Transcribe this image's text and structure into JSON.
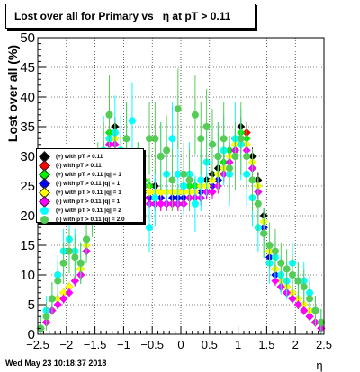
{
  "title": "Lost over all for Primary vs   η at pT > 0.11",
  "footer": "Wed May 23 10:18:37 2018",
  "chart_data": {
    "type": "scatter",
    "xlabel": "η",
    "ylabel": "Lost over all (%)",
    "xlim": [
      -2.5,
      2.5
    ],
    "ylim": [
      0,
      50
    ],
    "x_ticks": [
      "−2.5",
      "−2",
      "−1.5",
      "−1",
      "−0.5",
      "0",
      "0.5",
      "1",
      "1.5",
      "2",
      "2.5"
    ],
    "y_ticks": [
      "0",
      "5",
      "10",
      "15",
      "20",
      "25",
      "30",
      "35",
      "40",
      "45",
      "50"
    ],
    "grid": true,
    "legend_position": "left",
    "x": [
      -2.45,
      -2.35,
      -2.25,
      -2.15,
      -2.05,
      -1.95,
      -1.85,
      -1.75,
      -1.65,
      -1.55,
      -1.45,
      -1.35,
      -1.25,
      -1.15,
      -1.05,
      -0.95,
      -0.85,
      -0.75,
      -0.65,
      -0.55,
      -0.45,
      -0.35,
      -0.25,
      -0.15,
      -0.05,
      0.05,
      0.15,
      0.25,
      0.35,
      0.45,
      0.55,
      0.65,
      0.75,
      0.85,
      0.95,
      1.05,
      1.15,
      1.25,
      1.35,
      1.45,
      1.55,
      1.65,
      1.75,
      1.85,
      1.95,
      2.05,
      2.15,
      2.25,
      2.35,
      2.45
    ],
    "series": [
      {
        "name": "(+) with pT > 0.11",
        "color": "#000000",
        "values": [
          1,
          2,
          4,
          6,
          7,
          8,
          9,
          11,
          15,
          22,
          27,
          31,
          34,
          35,
          30,
          29,
          28,
          27,
          26,
          25,
          25,
          24,
          24,
          24,
          24,
          25,
          25,
          25,
          25,
          26,
          27,
          28,
          29,
          31,
          33,
          35,
          34,
          30,
          26,
          20,
          14,
          11,
          9,
          8,
          7,
          6,
          5,
          4,
          2,
          1
        ]
      },
      {
        "name": "(-) with pT > 0.11",
        "color": "#ff0000",
        "values": [
          1,
          2,
          4,
          5,
          6,
          8,
          9,
          10,
          14,
          21,
          26,
          31,
          33,
          34,
          28,
          26,
          25,
          24,
          23,
          23,
          22,
          22,
          22,
          22,
          22,
          22,
          23,
          23,
          23,
          24,
          24,
          26,
          27,
          29,
          31,
          33,
          34,
          29,
          24,
          18,
          13,
          10,
          8,
          7,
          6,
          5,
          4,
          3,
          2,
          1
        ]
      },
      {
        "name": "(+) with pT > 0.11 |q| = 1",
        "color": "#00ee00",
        "values": [
          1,
          2,
          4,
          6,
          7,
          8,
          9,
          11,
          15,
          21,
          27,
          31,
          34,
          34,
          30,
          28,
          27,
          26,
          26,
          25,
          24,
          24,
          24,
          24,
          24,
          24,
          25,
          25,
          25,
          25,
          26,
          27,
          29,
          31,
          32,
          34,
          33,
          29,
          25,
          19,
          14,
          11,
          9,
          8,
          7,
          6,
          5,
          4,
          2,
          1
        ]
      },
      {
        "name": "(-) with pT > 0.11 |q| = 1",
        "color": "#0000ff",
        "values": [
          1,
          2,
          4,
          5,
          6,
          8,
          9,
          10,
          14,
          20,
          26,
          30,
          32,
          33,
          28,
          26,
          25,
          24,
          24,
          23,
          23,
          23,
          22,
          23,
          23,
          23,
          23,
          24,
          24,
          24,
          25,
          26,
          28,
          30,
          31,
          33,
          32,
          28,
          24,
          18,
          13,
          10,
          8,
          7,
          6,
          5,
          4,
          3,
          2,
          1
        ]
      },
      {
        "name": "(+) with pT > 0.11 |q| = 1",
        "color": "#ffff00",
        "values": [
          1,
          2,
          4,
          6,
          7,
          8,
          9,
          11,
          15,
          22,
          27,
          31,
          33,
          33,
          29,
          27,
          26,
          25,
          25,
          24,
          24,
          24,
          24,
          24,
          24,
          24,
          24,
          24,
          25,
          25,
          26,
          27,
          28,
          30,
          32,
          33,
          32,
          29,
          25,
          19,
          14,
          11,
          9,
          8,
          7,
          6,
          5,
          4,
          2,
          1
        ]
      },
      {
        "name": "(-) with pT > 0.11 |q| = 1",
        "color": "#ff00ff",
        "values": [
          1,
          2,
          4,
          5,
          6,
          7,
          9,
          10,
          14,
          20,
          26,
          30,
          32,
          32,
          27,
          25,
          24,
          23,
          23,
          22,
          22,
          22,
          22,
          22,
          22,
          22,
          23,
          23,
          23,
          24,
          24,
          25,
          27,
          29,
          31,
          32,
          31,
          28,
          24,
          17,
          12,
          9,
          8,
          7,
          6,
          5,
          4,
          3,
          2,
          1
        ]
      },
      {
        "name": "(+) with pT > 0.11 |q| = 2",
        "color": "#00ffff",
        "values": [
          1,
          4,
          6,
          10,
          14,
          16,
          14,
          12,
          16,
          22,
          26,
          31,
          33,
          34,
          31,
          33,
          36,
          27,
          25,
          18,
          23,
          30,
          27,
          33,
          27,
          25,
          27,
          22,
          26,
          29,
          32,
          30,
          31,
          27,
          33,
          32,
          27,
          23,
          18,
          17,
          12,
          13,
          10,
          9,
          12,
          9,
          9,
          7,
          4,
          2
        ]
      },
      {
        "name": "(-) with pT > 0.11 |q| = 2.0",
        "color": "#55cc55",
        "values": [
          1,
          3,
          6,
          9,
          12,
          14,
          13,
          12,
          16,
          21,
          27,
          30,
          37,
          30,
          28,
          33,
          26,
          27,
          25,
          33,
          33,
          30,
          31,
          26,
          38,
          27,
          26,
          37,
          33,
          35,
          32,
          30,
          33,
          28,
          30,
          33,
          30,
          26,
          22,
          17,
          15,
          14,
          12,
          11,
          10,
          9,
          8,
          6,
          4,
          2
        ]
      }
    ]
  }
}
